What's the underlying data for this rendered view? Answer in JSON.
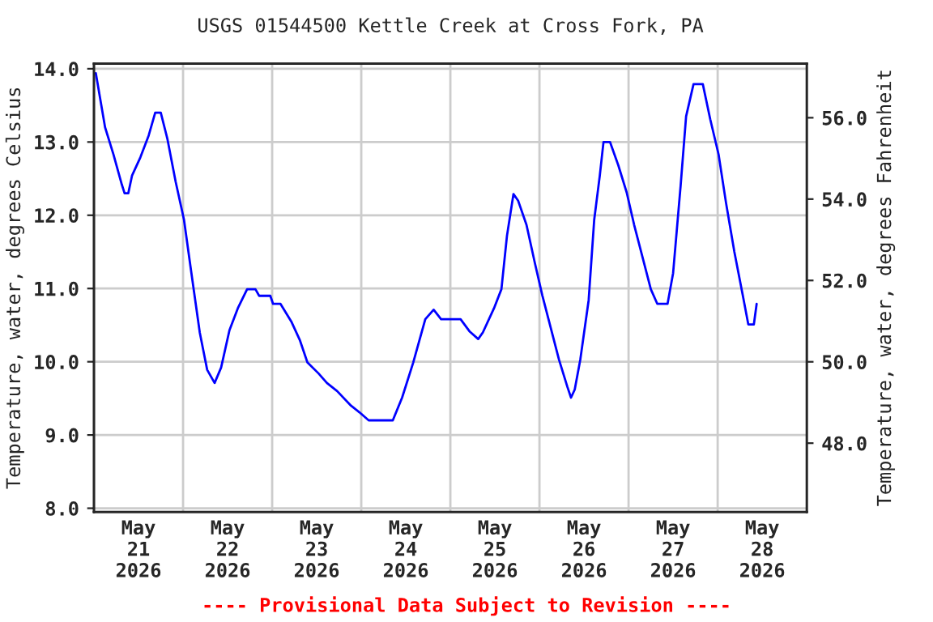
{
  "chart_data": {
    "type": "line",
    "title": "USGS 01544500 Kettle Creek at Cross Fork, PA",
    "ylabel": "Temperature, water, degrees Celsius",
    "y2label": "Temperature, water, degrees Fahrenheit",
    "annotations": [
      "---- Provisional Data Subject to Revision ----"
    ],
    "series": [
      {
        "color": "#0000ff",
        "line_style": "solid",
        "x": [
          "2026-05-21T00:30",
          "2026-05-21T03:00",
          "2026-05-21T05:15",
          "2026-05-21T07:30",
          "2026-05-21T08:15",
          "2026-05-21T09:15",
          "2026-05-21T10:15",
          "2026-05-21T12:30",
          "2026-05-21T14:45",
          "2026-05-21T16:30",
          "2026-05-21T18:00",
          "2026-05-21T19:45",
          "2026-05-21T22:00",
          "2026-05-22T00:15",
          "2026-05-22T02:15",
          "2026-05-22T04:30",
          "2026-05-22T06:30",
          "2026-05-22T08:30",
          "2026-05-22T10:15",
          "2026-05-22T12:30",
          "2026-05-22T14:45",
          "2026-05-22T17:15",
          "2026-05-22T19:30",
          "2026-05-22T20:30",
          "2026-05-22T23:30",
          "2026-05-23T00:15",
          "2026-05-23T02:15",
          "2026-05-23T05:15",
          "2026-05-23T07:30",
          "2026-05-23T09:30",
          "2026-05-23T12:30",
          "2026-05-23T14:45",
          "2026-05-23T17:30",
          "2026-05-23T21:15",
          "2026-05-23T23:30",
          "2026-05-24T02:00",
          "2026-05-24T08:30",
          "2026-05-24T11:00",
          "2026-05-24T14:00",
          "2026-05-24T17:15",
          "2026-05-24T19:30",
          "2026-05-24T21:30",
          "2026-05-25T02:45",
          "2026-05-25T05:15",
          "2026-05-25T07:30",
          "2026-05-25T08:45",
          "2026-05-25T11:45",
          "2026-05-25T13:45",
          "2026-05-25T15:15",
          "2026-05-25T17:00",
          "2026-05-25T18:15",
          "2026-05-25T20:30",
          "2026-05-25T22:45",
          "2026-05-26T00:45",
          "2026-05-26T03:00",
          "2026-05-26T05:15",
          "2026-05-26T07:30",
          "2026-05-26T08:30",
          "2026-05-26T09:30",
          "2026-05-26T11:00",
          "2026-05-26T13:15",
          "2026-05-26T14:45",
          "2026-05-26T16:15",
          "2026-05-26T17:15",
          "2026-05-26T19:00",
          "2026-05-26T21:15",
          "2026-05-26T23:30",
          "2026-05-27T01:30",
          "2026-05-27T03:45",
          "2026-05-27T06:00",
          "2026-05-27T07:45",
          "2026-05-27T10:30",
          "2026-05-27T12:00",
          "2026-05-27T14:00",
          "2026-05-27T15:30",
          "2026-05-27T17:30",
          "2026-05-27T20:00",
          "2026-05-27T22:00",
          "2026-05-28T00:15",
          "2026-05-28T02:15",
          "2026-05-28T04:30",
          "2026-05-28T06:45",
          "2026-05-28T08:15",
          "2026-05-28T09:45",
          "2026-05-28T10:30"
        ],
        "values": [
          13.94,
          13.2,
          12.83,
          12.42,
          12.3,
          12.3,
          12.54,
          12.79,
          13.09,
          13.4,
          13.4,
          13.05,
          12.46,
          11.94,
          11.21,
          10.4,
          9.89,
          9.71,
          9.92,
          10.43,
          10.73,
          10.99,
          10.99,
          10.9,
          10.9,
          10.79,
          10.79,
          10.54,
          10.29,
          9.99,
          9.84,
          9.71,
          9.6,
          9.4,
          9.31,
          9.2,
          9.2,
          9.51,
          9.99,
          10.58,
          10.71,
          10.58,
          10.58,
          10.41,
          10.31,
          10.4,
          10.73,
          10.99,
          11.72,
          12.29,
          12.2,
          11.87,
          11.35,
          10.91,
          10.47,
          10.03,
          9.66,
          9.51,
          9.62,
          10.03,
          10.84,
          11.94,
          12.54,
          13.0,
          13.0,
          12.68,
          12.31,
          11.87,
          11.43,
          10.99,
          10.79,
          10.79,
          11.21,
          12.39,
          13.35,
          13.79,
          13.79,
          13.31,
          12.83,
          12.17,
          11.5,
          10.91,
          10.51,
          10.51,
          10.79
        ]
      }
    ],
    "xlim": [
      "2026-05-21T00:00",
      "2026-05-29T00:00"
    ],
    "xticks": [
      {
        "value": "2026-05-21T12:00",
        "label": "May\n21\n2026"
      },
      {
        "value": "2026-05-22T12:00",
        "label": "May\n22\n2026"
      },
      {
        "value": "2026-05-23T12:00",
        "label": "May\n23\n2026"
      },
      {
        "value": "2026-05-24T12:00",
        "label": "May\n24\n2026"
      },
      {
        "value": "2026-05-25T12:00",
        "label": "May\n25\n2026"
      },
      {
        "value": "2026-05-26T12:00",
        "label": "May\n26\n2026"
      },
      {
        "value": "2026-05-27T12:00",
        "label": "May\n27\n2026"
      },
      {
        "value": "2026-05-28T12:00",
        "label": "May\n28\n2026"
      },
      {
        "value": "2026-05-22T00:00",
        "label": null
      },
      {
        "value": "2026-05-23T00:00",
        "label": null
      },
      {
        "value": "2026-05-24T00:00",
        "label": null
      },
      {
        "value": "2026-05-25T00:00",
        "label": null
      },
      {
        "value": "2026-05-26T00:00",
        "label": null
      },
      {
        "value": "2026-05-27T00:00",
        "label": null
      },
      {
        "value": "2026-05-28T00:00",
        "label": null
      }
    ],
    "ylim": [
      7.95,
      14.07
    ],
    "yticks": [
      {
        "value": 8,
        "label": "8.0"
      },
      {
        "value": 9,
        "label": "9.0"
      },
      {
        "value": 10,
        "label": "10.0"
      },
      {
        "value": 11,
        "label": "11.0"
      },
      {
        "value": 12,
        "label": "12.0"
      },
      {
        "value": 13,
        "label": "13.0"
      },
      {
        "value": 14,
        "label": "14.0"
      }
    ],
    "y2lim": [
      46.31,
      57.33
    ],
    "y2ticks": [
      {
        "value": 48,
        "label": "48.0"
      },
      {
        "value": 50,
        "label": "50.0"
      },
      {
        "value": 52,
        "label": "52.0"
      },
      {
        "value": 54,
        "label": "54.0"
      },
      {
        "value": 56,
        "label": "56.0"
      }
    ],
    "grid": true
  }
}
